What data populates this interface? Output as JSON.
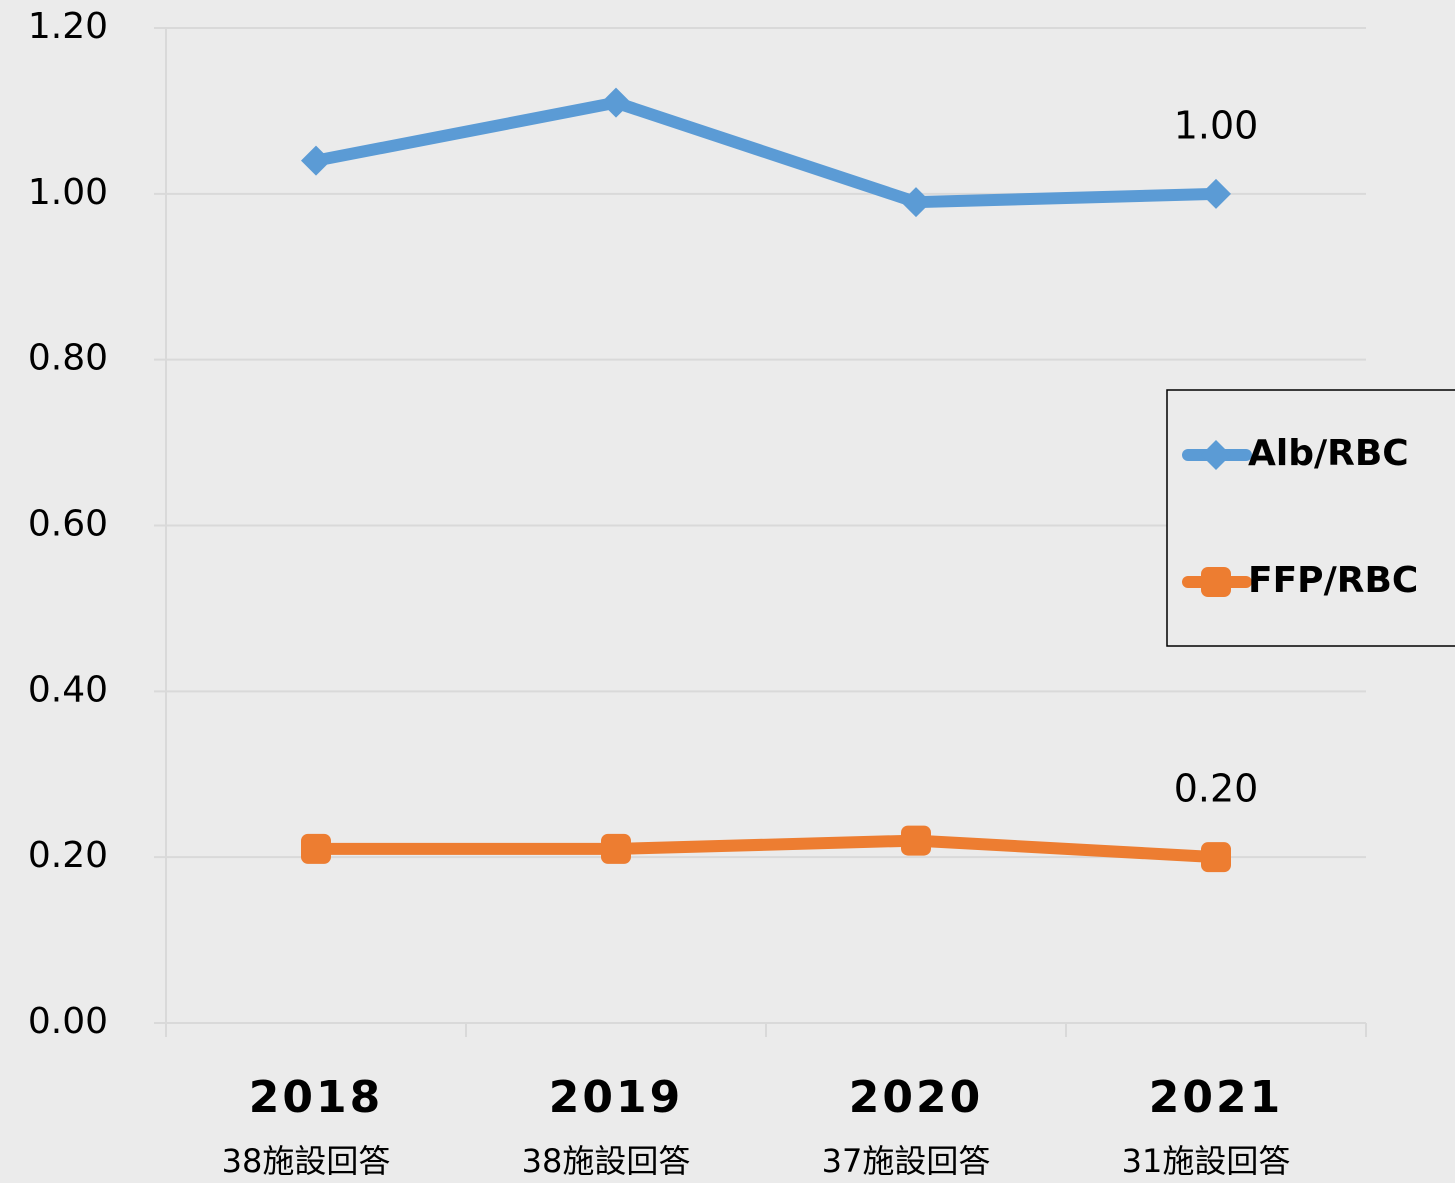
{
  "chart_data": {
    "type": "line",
    "categories": [
      "2018",
      "2019",
      "2020",
      "2021"
    ],
    "category_notes": [
      "38施設回答",
      "38施設回答",
      "37施設回答",
      "31施設回答"
    ],
    "series": [
      {
        "name": "Alb/RBC",
        "color": "#5b9bd5",
        "marker": "diamond",
        "values": [
          1.04,
          1.11,
          0.99,
          1.0
        ],
        "value_labels": [
          null,
          null,
          null,
          "1.00"
        ]
      },
      {
        "name": "FFP/RBC",
        "color": "#ed7d31",
        "marker": "square",
        "values": [
          0.21,
          0.21,
          0.22,
          0.2
        ],
        "value_labels": [
          null,
          null,
          null,
          "0.20"
        ]
      }
    ],
    "ylim": [
      0,
      1.2
    ],
    "yticks": [
      {
        "value": 0,
        "label": "0.00"
      },
      {
        "value": 0.2,
        "label": "0.20"
      },
      {
        "value": 0.4,
        "label": "0.40"
      },
      {
        "value": 0.6,
        "label": "0.60"
      },
      {
        "value": 0.8,
        "label": "0.80"
      },
      {
        "value": 1.0,
        "label": "1.00"
      },
      {
        "value": 1.2,
        "label": "1.20"
      }
    ],
    "grid": true,
    "legend": "right"
  }
}
